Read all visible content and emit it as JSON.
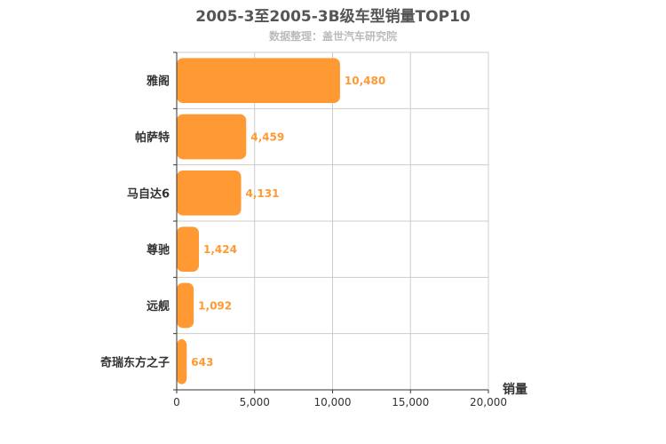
{
  "chart_data": {
    "type": "bar",
    "orientation": "horizontal",
    "title": "2005-3至2005-3B级车型销量TOP10",
    "subtitle": "数据整理：盖世汽车研究院",
    "categories": [
      "雅阁",
      "帕萨特",
      "马自达6",
      "尊驰",
      "远舰",
      "奇瑞东方之子"
    ],
    "values": [
      10480,
      4459,
      4131,
      1424,
      1092,
      643
    ],
    "value_labels": [
      "10,480",
      "4,459",
      "4,131",
      "1,424",
      "1,092",
      "643"
    ],
    "xlabel": "销量",
    "ylabel": "",
    "xlim": [
      0,
      20000
    ],
    "x_ticks": [
      0,
      5000,
      10000,
      15000,
      20000
    ],
    "x_tick_labels": [
      "0",
      "5,000",
      "10,000",
      "15,000",
      "20,000"
    ],
    "grid": true,
    "legend": "none",
    "colors": {
      "bar": "#ff9933",
      "value_label": "#ff9933",
      "grid": "#cccccc",
      "axis": "#333333",
      "title": "#555555",
      "subtitle": "#bbbbbb"
    }
  }
}
